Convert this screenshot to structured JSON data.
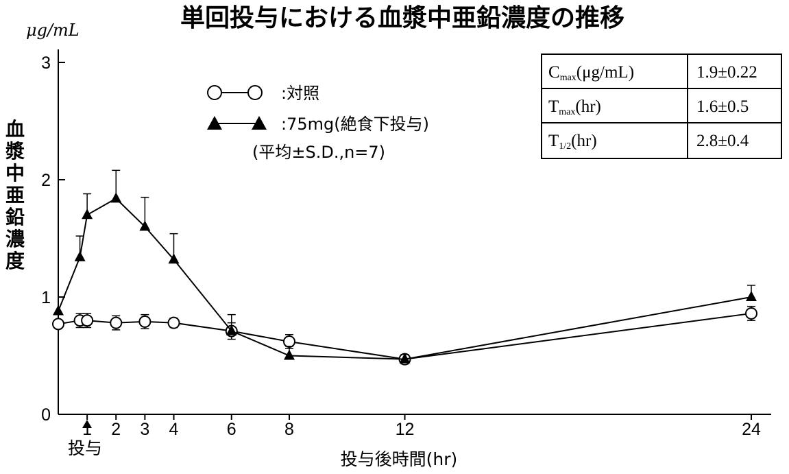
{
  "chart_data": {
    "type": "line",
    "title": "単回投与における血漿中亜鉛濃度の推移",
    "y_unit": "μg/mL",
    "ylabel": "血漿中亜鉛濃度",
    "xlabel": "投与後時間(hr)",
    "dose_marker_label": "投与",
    "ylim": [
      0,
      3
    ],
    "y_ticks": [
      "0",
      "1",
      "2",
      "3"
    ],
    "x_ticks": [
      1,
      2,
      3,
      4,
      6,
      8,
      12,
      24
    ],
    "x_tick_labels": [
      "1",
      "2",
      "3",
      "4",
      "6",
      "8",
      "12",
      "24"
    ],
    "legend_note": "(平均±S.D.,n=7)",
    "series": [
      {
        "name": ":対照",
        "marker": "circle-open",
        "x": [
          0,
          1,
          1.5,
          2,
          2.5,
          3,
          4,
          6,
          8,
          12,
          24
        ],
        "values": [
          0.77,
          0.8,
          0.8,
          0.78,
          0.79,
          0.78,
          0.71,
          0.62,
          0.47,
          0.86,
          null
        ],
        "sd": [
          0,
          0.06,
          0.06,
          0.06,
          0.06,
          0.04,
          0.07,
          0.06,
          0.04,
          0.06,
          null
        ]
      },
      {
        "name": ":75mg(絶食下投与)",
        "marker": "triangle-filled",
        "x": [
          0,
          0.75,
          1,
          2,
          3,
          4,
          6,
          8,
          12,
          24
        ],
        "values": [
          0.88,
          1.34,
          1.7,
          1.84,
          1.6,
          1.32,
          0.71,
          0.5,
          0.47,
          1.0
        ],
        "sd": [
          0,
          0.18,
          0.18,
          0.24,
          0.25,
          0.22,
          0.14,
          0.08,
          0.04,
          0.1
        ]
      }
    ],
    "pk_table": [
      {
        "param": "C",
        "sub": "max",
        "unit": "(μg/mL)",
        "value": "1.9±0.22"
      },
      {
        "param": "T",
        "sub": "max",
        "unit": "(hr)",
        "value": "1.6±0.5"
      },
      {
        "param": "T",
        "sub": "1/2",
        "unit": "(hr)",
        "value": "2.8±0.4"
      }
    ]
  }
}
